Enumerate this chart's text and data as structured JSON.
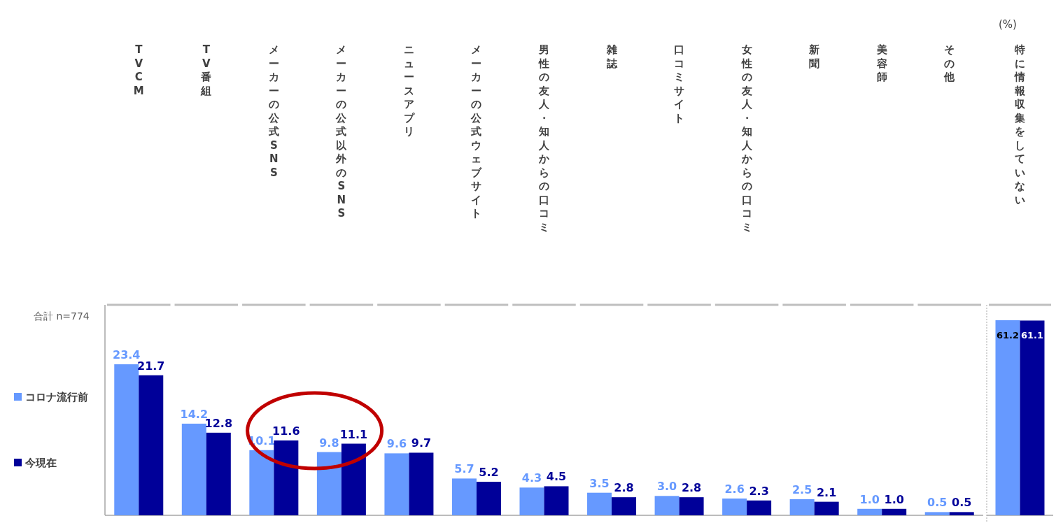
{
  "chart_data": [
    {
      "type": "bar",
      "categories": [
        "TVCM",
        "TV番組",
        "メーカーの公式SNS",
        "メーカーの公式以外のSNS",
        "ニュースアプリ",
        "メーカーの公式ウェブサイト",
        "男性の友人・知人からの口コミ",
        "雑誌",
        "口コミサイト",
        "女性の友人・知人からの口コミ",
        "新聞",
        "美容師",
        "その他"
      ],
      "series": [
        {
          "name": "コロナ流行前",
          "color": "#6699ff",
          "values": [
            23.4,
            14.2,
            10.1,
            9.8,
            9.6,
            5.7,
            4.3,
            3.5,
            3.0,
            2.6,
            2.5,
            1.0,
            0.5
          ],
          "value_labels": [
            "23.4",
            "14.2",
            "10.1",
            "9.8",
            "9.6",
            "5.7",
            "4.3",
            "3.5",
            "3.0",
            "2.6",
            "2.5",
            "1.0",
            "0.5"
          ]
        },
        {
          "name": "今現在",
          "color": "#000099",
          "values": [
            21.7,
            12.8,
            11.6,
            11.1,
            9.7,
            5.2,
            4.5,
            2.8,
            2.8,
            2.3,
            2.1,
            1.0,
            0.5
          ],
          "value_labels": [
            "21.7",
            "12.8",
            "11.6",
            "11.1",
            "9.7",
            "5.2",
            "4.5",
            "2.8",
            "2.8",
            "2.3",
            "2.1",
            "1.0",
            "0.5"
          ]
        }
      ],
      "legend": "left",
      "annotations": [
        "合計 n=774"
      ]
    },
    {
      "type": "bar",
      "categories": [
        "特に情報収集をしていない"
      ],
      "series": [
        {
          "color": "#6699ff",
          "values": [
            61.2
          ],
          "value_labels": [
            "61.2"
          ]
        },
        {
          "color": "#000099",
          "values": [
            61.1
          ],
          "value_labels": [
            "61.1"
          ]
        }
      ],
      "annotations": [
        "(%)"
      ]
    }
  ]
}
